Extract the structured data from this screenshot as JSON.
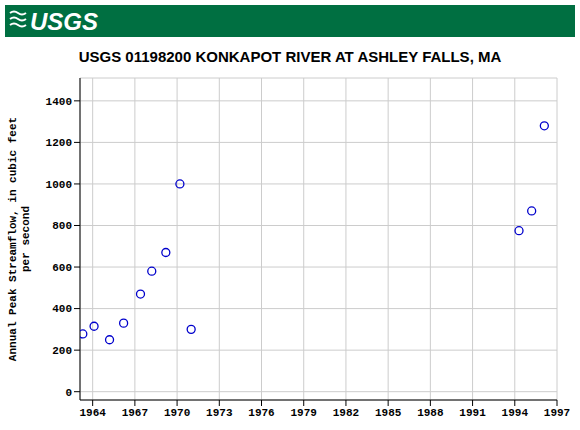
{
  "header": {
    "logo": "USGS"
  },
  "chart_data": {
    "type": "scatter",
    "title": "USGS 01198200 KONKAPOT RIVER AT ASHLEY FALLS, MA",
    "y_label": "Annual Peak Streamflow, in cubic feet per second",
    "x": [
      1963.3,
      1964.1,
      1965.2,
      1966.2,
      1967.4,
      1968.2,
      1969.2,
      1970.2,
      1971.0,
      1994.3,
      1995.2,
      1996.1
    ],
    "values": [
      278,
      315,
      250,
      330,
      470,
      580,
      670,
      1000,
      300,
      775,
      870,
      1280
    ],
    "color": "#0000cc",
    "marker": "hollow_circle",
    "xlim": [
      1963.1,
      1997
    ],
    "xticks": [
      1964,
      1967,
      1970,
      1973,
      1976,
      1979,
      1982,
      1985,
      1988,
      1991,
      1994,
      1997
    ],
    "ylim": [
      -40,
      1510
    ],
    "yticks": [
      0,
      200,
      400,
      600,
      800,
      1000,
      1200,
      1400
    ],
    "grid": true
  }
}
